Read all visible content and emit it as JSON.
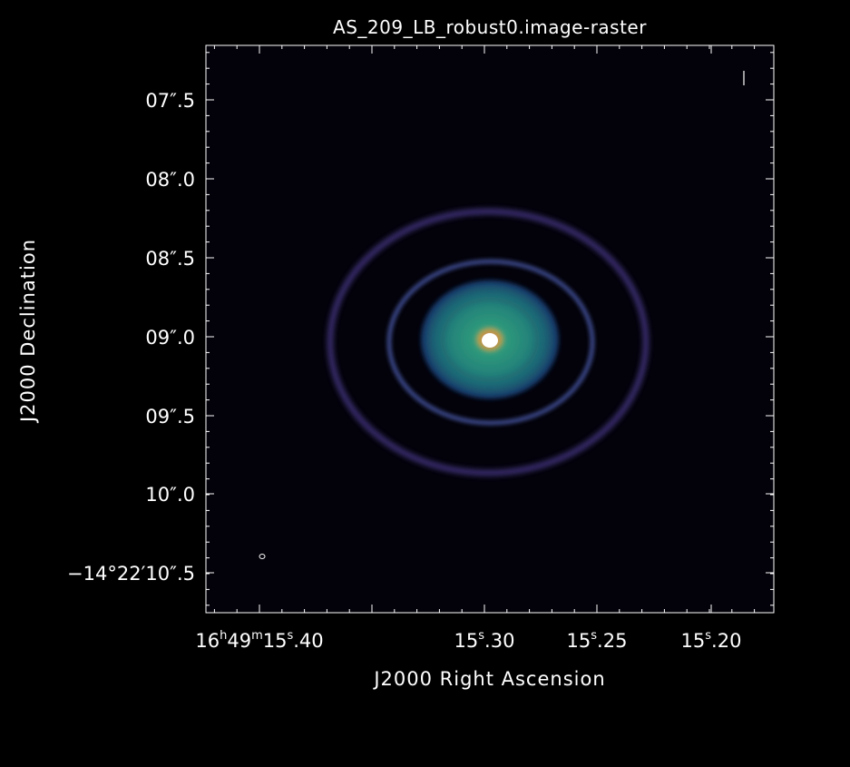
{
  "title": "AS_209_LB_robust0.image-raster",
  "xlabel": "J2000 Right Ascension",
  "ylabel": "J2000 Declination",
  "x_ticks": [
    {
      "h": "16",
      "m": "49",
      "s": "15",
      "f": ".40"
    },
    {
      "h": "",
      "m": "",
      "s": "15",
      "f": ".30"
    },
    {
      "h": "",
      "m": "",
      "s": "15",
      "f": ".25"
    },
    {
      "h": "",
      "m": "",
      "s": "15",
      "f": ".20"
    }
  ],
  "y_ticks": [
    {
      "pre": "",
      "sec": "07",
      "frac": ".5"
    },
    {
      "pre": "",
      "sec": "08",
      "frac": ".0"
    },
    {
      "pre": "",
      "sec": "08",
      "frac": ".5"
    },
    {
      "pre": "",
      "sec": "09",
      "frac": ".0"
    },
    {
      "pre": "",
      "sec": "09",
      "frac": ".5"
    },
    {
      "pre": "",
      "sec": "10",
      "frac": ".0"
    },
    {
      "pre": "−14°22′",
      "sec": "10",
      "frac": ".5"
    }
  ],
  "colors": {
    "background": "#000000",
    "outer_ring": "#3a2f6e",
    "inner_ring": "#3f4a8c",
    "disk_outer": "#1f6a78",
    "disk_inner": "#2f9a7a",
    "core_ring": "#c8a24a",
    "core": "#ffffff"
  }
}
